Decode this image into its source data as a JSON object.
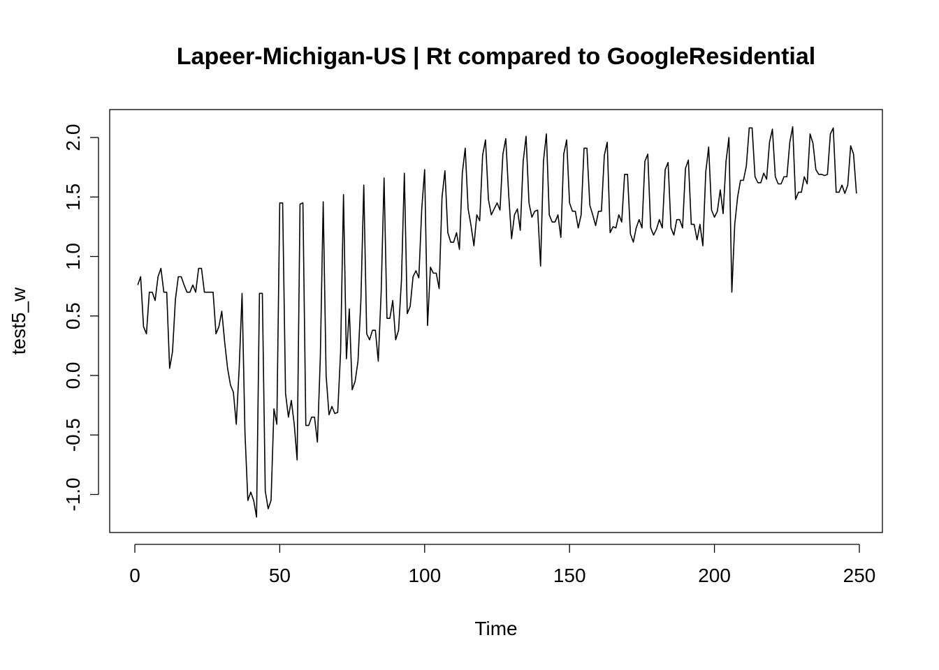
{
  "chart_data": {
    "type": "line",
    "title": "Lapeer-Michigan-US | Rt compared to GoogleResidential",
    "xlabel": "Time",
    "ylabel": "test5_w",
    "xlim": [
      1,
      248
    ],
    "ylim": [
      -1.2,
      2.1
    ],
    "x_ticks": [
      0,
      50,
      100,
      150,
      200,
      250
    ],
    "y_ticks": [
      -1.0,
      -0.5,
      0.0,
      0.5,
      1.0,
      1.5,
      2.0
    ],
    "x_tick_labels": [
      "0",
      "50",
      "100",
      "150",
      "200",
      "250"
    ],
    "y_tick_labels": [
      "-1.0",
      "-0.5",
      "0.0",
      "0.5",
      "1.0",
      "1.5",
      "2.0"
    ],
    "grid": false,
    "legend": "none",
    "line_color": "#000000",
    "series": [
      {
        "x_start": 1,
        "values": [
          0.76,
          0.83,
          0.41,
          0.35,
          0.7,
          0.7,
          0.63,
          0.83,
          0.9,
          0.7,
          0.7,
          0.06,
          0.2,
          0.64,
          0.83,
          0.83,
          0.76,
          0.7,
          0.7,
          0.76,
          0.7,
          0.9,
          0.9,
          0.7,
          0.7,
          0.7,
          0.7,
          0.35,
          0.41,
          0.54,
          0.28,
          0.06,
          -0.08,
          -0.14,
          -0.41,
          0.06,
          0.69,
          -0.48,
          -1.05,
          -0.98,
          -1.05,
          -1.19,
          0.69,
          0.69,
          -0.97,
          -1.12,
          -1.05,
          -0.28,
          -0.41,
          1.45,
          1.45,
          -0.15,
          -0.35,
          -0.21,
          -0.41,
          -0.71,
          1.44,
          1.45,
          -0.42,
          -0.42,
          -0.35,
          -0.35,
          -0.56,
          0.15,
          1.46,
          0.0,
          -0.33,
          -0.26,
          -0.32,
          -0.31,
          0.2,
          1.52,
          0.14,
          0.56,
          -0.12,
          -0.05,
          0.12,
          0.63,
          1.6,
          0.35,
          0.3,
          0.38,
          0.38,
          0.12,
          0.7,
          1.66,
          0.48,
          0.48,
          0.63,
          0.3,
          0.38,
          0.8,
          1.7,
          0.52,
          0.58,
          0.83,
          0.88,
          0.82,
          1.4,
          1.73,
          0.42,
          0.91,
          0.86,
          0.86,
          0.73,
          1.5,
          1.72,
          1.2,
          1.12,
          1.12,
          1.2,
          1.06,
          1.7,
          1.91,
          1.4,
          1.26,
          1.09,
          1.35,
          1.3,
          1.85,
          1.98,
          1.48,
          1.35,
          1.4,
          1.45,
          1.39,
          1.86,
          1.99,
          1.52,
          1.15,
          1.35,
          1.4,
          1.22,
          1.8,
          2.01,
          1.45,
          1.33,
          1.38,
          1.39,
          0.92,
          1.8,
          2.03,
          1.35,
          1.29,
          1.29,
          1.35,
          1.16,
          1.86,
          1.98,
          1.45,
          1.38,
          1.38,
          1.24,
          1.35,
          1.91,
          1.91,
          1.43,
          1.35,
          1.26,
          1.38,
          1.38,
          1.85,
          1.96,
          1.2,
          1.25,
          1.24,
          1.35,
          1.29,
          1.69,
          1.69,
          1.19,
          1.12,
          1.24,
          1.31,
          1.24,
          1.8,
          1.86,
          1.24,
          1.18,
          1.23,
          1.31,
          1.24,
          1.73,
          1.79,
          1.24,
          1.18,
          1.31,
          1.31,
          1.24,
          1.74,
          1.81,
          1.27,
          1.27,
          1.14,
          1.27,
          1.09,
          1.71,
          1.92,
          1.39,
          1.33,
          1.38,
          1.56,
          1.36,
          1.8,
          2.0,
          0.7,
          1.27,
          1.5,
          1.64,
          1.64,
          1.76,
          2.08,
          2.08,
          1.67,
          1.62,
          1.62,
          1.7,
          1.65,
          1.96,
          2.07,
          1.67,
          1.61,
          1.61,
          1.67,
          1.67,
          1.96,
          2.09,
          1.48,
          1.54,
          1.54,
          1.67,
          1.61,
          2.03,
          1.95,
          1.73,
          1.69,
          1.69,
          1.68,
          1.69,
          2.03,
          2.08,
          1.54,
          1.54,
          1.6,
          1.53,
          1.6,
          1.93,
          1.86,
          1.53
        ]
      }
    ]
  }
}
